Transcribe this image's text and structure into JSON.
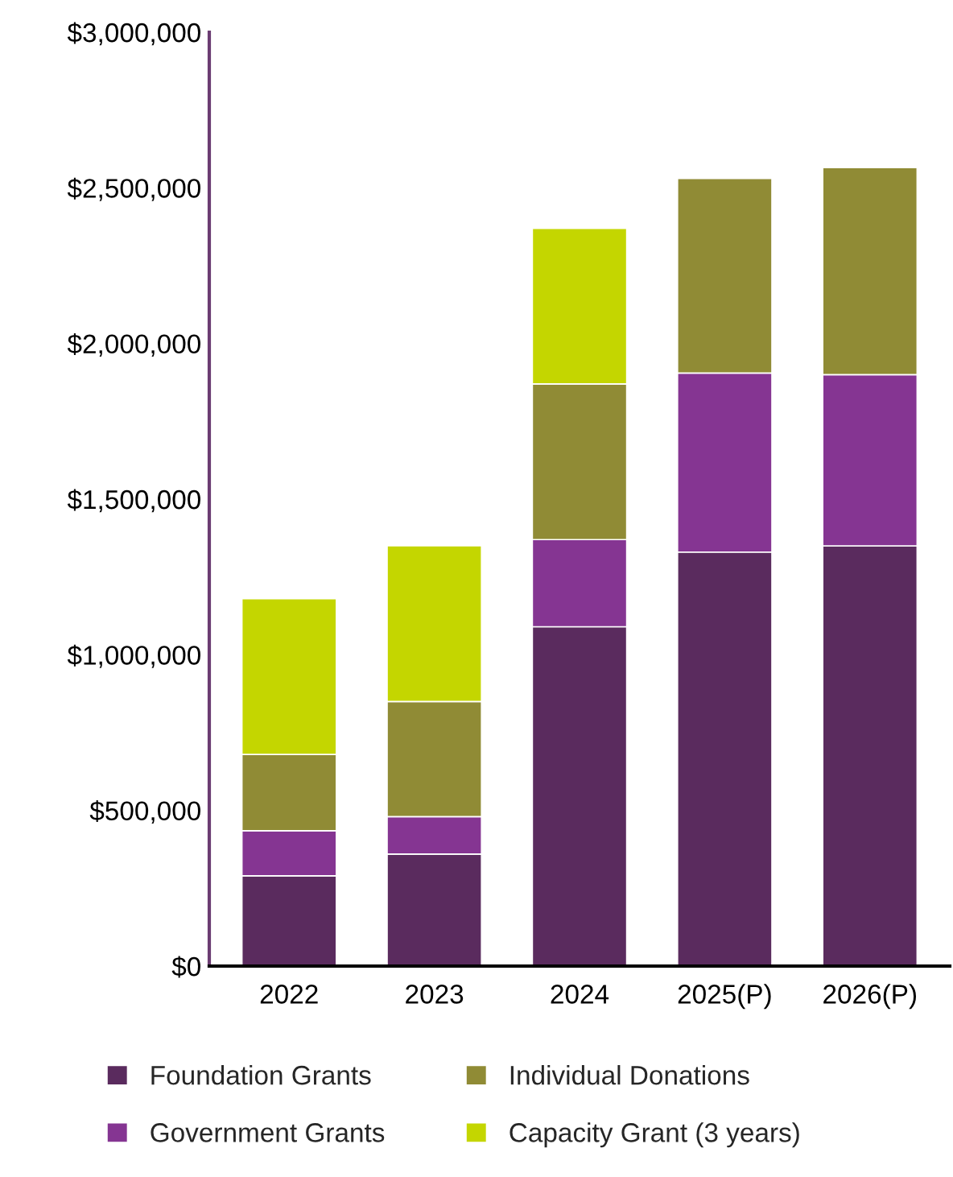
{
  "chart_data": {
    "type": "bar",
    "stacked": true,
    "categories": [
      "2022",
      "2023",
      "2024",
      "2025(P)",
      "2026(P)"
    ],
    "series": [
      {
        "name": "Foundation Grants",
        "color": "#5a2b5e",
        "values": [
          290000,
          360000,
          1090000,
          1330000,
          1350000
        ]
      },
      {
        "name": "Government Grants",
        "color": "#853592",
        "values": [
          145000,
          120000,
          280000,
          575000,
          550000
        ]
      },
      {
        "name": "Individual Donations",
        "color": "#908b35",
        "values": [
          245000,
          370000,
          500000,
          625000,
          665000
        ]
      },
      {
        "name": "Capacity Grant (3 years)",
        "color": "#c4d600",
        "values": [
          500000,
          500000,
          500000,
          null,
          null
        ]
      }
    ],
    "ylim": [
      0,
      3000000
    ],
    "yticks": [
      {
        "value": 0,
        "label": "$0"
      },
      {
        "value": 500000,
        "label": "$500,000"
      },
      {
        "value": 1000000,
        "label": "$1,000,000"
      },
      {
        "value": 1500000,
        "label": "$1,500,000"
      },
      {
        "value": 2000000,
        "label": "$2,000,000"
      },
      {
        "value": 2500000,
        "label": "$2,500,000"
      },
      {
        "value": 3000000,
        "label": "$3,000,000"
      }
    ],
    "grid": false,
    "legend": "bottom"
  }
}
